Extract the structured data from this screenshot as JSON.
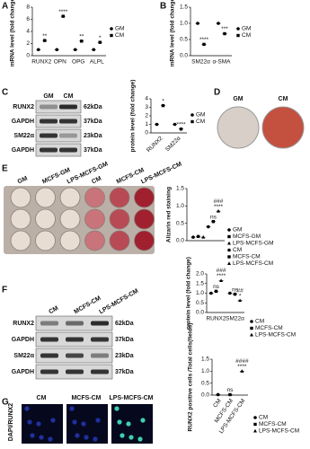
{
  "panel_labels": [
    "A",
    "B",
    "C",
    "D",
    "E",
    "F",
    "G"
  ],
  "blot_c": {
    "columns": [
      "GM",
      "CM"
    ],
    "rows": [
      {
        "protein": "RUNX2",
        "size": "62kDa"
      },
      {
        "protein": "GAPDH",
        "size": "37kDa"
      },
      {
        "protein": "SM22α",
        "size": "23kDa"
      },
      {
        "protein": "GAPDH",
        "size": "37kDa"
      }
    ]
  },
  "dishes_d": {
    "labels": [
      "GM",
      "CM"
    ]
  },
  "plate_e": {
    "labels": [
      "GM",
      "MCFS-GM",
      "LPS-MCFS-GM",
      "CM",
      "MCFS-CM",
      "LPS-MCFS-CM"
    ]
  },
  "blot_f": {
    "columns": [
      "CM",
      "MCFS-CM",
      "LPS-MCFS-CM"
    ],
    "rows": [
      {
        "protein": "RUNX2",
        "size": "62kDa"
      },
      {
        "protein": "GAPDH",
        "size": "37kDa"
      },
      {
        "protein": "SM22α",
        "size": "23kDa"
      },
      {
        "protein": "GAPDH",
        "size": "37kDa"
      }
    ]
  },
  "images_g": {
    "stain": "DAPI/RUNX2",
    "labels": [
      "CM",
      "MCFS-CM",
      "LPS-MCFS-CM"
    ]
  },
  "chart_data": [
    {
      "type": "dot",
      "ylabel": "mRNA level (fold change)",
      "categories": [
        "RUNX2",
        "OPN",
        "OPG",
        "ALPL"
      ],
      "ylim": [
        0,
        8
      ],
      "yticks": [
        0,
        2,
        4,
        6,
        8
      ],
      "series": [
        {
          "name": "GM",
          "color": "#000000",
          "values": [
            1,
            1,
            1,
            1
          ]
        },
        {
          "name": "CM",
          "color": "#000000",
          "values": [
            2.5,
            6.5,
            2.4,
            2.2
          ],
          "annotations": [
            [
              "**"
            ],
            [
              "****"
            ],
            [
              "**"
            ],
            [
              "*"
            ]
          ]
        }
      ]
    },
    {
      "type": "dot",
      "ylabel": "mRNA level (fold change)",
      "categories": [
        "SM22α",
        "α-SMA"
      ],
      "ylim": [
        0,
        1.5
      ],
      "yticks": [
        {
          "value": 0,
          "label": "0.0"
        },
        {
          "value": 0.5,
          "label": "0.5"
        },
        {
          "value": 1,
          "label": "1.0"
        },
        {
          "value": 1.5,
          "label": "1.5"
        }
      ],
      "series": [
        {
          "name": "GM",
          "color": "#000000",
          "values": [
            1,
            1
          ]
        },
        {
          "name": "CM",
          "color": "#000000",
          "values": [
            0.35,
            0.68
          ],
          "annotations": [
            [
              "****"
            ],
            [
              "***"
            ]
          ]
        }
      ]
    },
    {
      "type": "dot",
      "ylabel": "protein level (fold change)",
      "categories": [
        "RUNX2",
        "SM22α"
      ],
      "ylim": [
        0,
        4
      ],
      "yticks": [
        0,
        1,
        2,
        3,
        4
      ],
      "series": [
        {
          "name": "GM",
          "color": "#000000",
          "values": [
            1,
            1
          ]
        },
        {
          "name": "CM",
          "color": "#000000",
          "values": [
            3.2,
            0.45
          ],
          "annotations": [
            [
              "*"
            ],
            [
              "****"
            ]
          ]
        }
      ]
    },
    {
      "type": "dot",
      "ylabel": "Alizarin red staining",
      "categories": [
        null
      ],
      "ylim": [
        0,
        1.5
      ],
      "yticks": [
        {
          "value": 0,
          "label": "0.0"
        },
        {
          "value": 0.5,
          "label": "0.5"
        },
        {
          "value": 1,
          "label": "1.0"
        },
        {
          "value": 1.5,
          "label": "1.5"
        }
      ],
      "series": [
        {
          "name": "GM",
          "color": "#000000",
          "values": [
            0.1
          ]
        },
        {
          "name": "MCFS-GM",
          "color": "#000000",
          "values": [
            0.12
          ]
        },
        {
          "name": "LPS-MCFS-GM",
          "color": "#000000",
          "values": [
            0.1
          ]
        },
        {
          "name": "CM",
          "color": "#000000",
          "values": [
            0.4
          ]
        },
        {
          "name": "MCFS-CM",
          "color": "#000000",
          "values": [
            0.55
          ],
          "annotations": [
            [
              "ns"
            ]
          ]
        },
        {
          "name": "LPS-MCFS-CM",
          "color": "#000000",
          "values": [
            0.85
          ],
          "annotations": [
            [
              "###",
              "****"
            ]
          ]
        }
      ]
    },
    {
      "type": "dot",
      "ylabel": "protein level (fold change)",
      "categories": [
        "RUNX2",
        "SM22α"
      ],
      "ylim": [
        0,
        2
      ],
      "yticks": [
        {
          "value": 0,
          "label": "0.0"
        },
        {
          "value": 0.5,
          "label": "0.5"
        },
        {
          "value": 1,
          "label": "1.0"
        },
        {
          "value": 1.5,
          "label": "1.5"
        },
        {
          "value": 2,
          "label": "2.0"
        }
      ],
      "series": [
        {
          "name": "CM",
          "color": "#000000",
          "values": [
            1,
            1
          ]
        },
        {
          "name": "MCFS-CM",
          "color": "#000000",
          "values": [
            1.1,
            0.95
          ],
          "annotations": [
            [
              "ns"
            ],
            [
              "ns"
            ]
          ]
        },
        {
          "name": "LPS-MCFS-CM",
          "color": "#000000",
          "values": [
            1.65,
            0.62
          ],
          "annotations": [
            [
              "###",
              "****"
            ],
            [
              "##",
              "*"
            ]
          ]
        }
      ]
    },
    {
      "type": "dot",
      "ylabel": "RUNX2 positive cells /Total cells(fields)",
      "categories": [
        "CM",
        "MCFS-CM",
        "LPS-MCFS-CM"
      ],
      "ylim": [
        0,
        1.5
      ],
      "yticks": [
        {
          "value": 0,
          "label": "0.0"
        },
        {
          "value": 0.5,
          "label": "0.5"
        },
        {
          "value": 1,
          "label": "1.0"
        },
        {
          "value": 1.5,
          "label": "1.5"
        }
      ],
      "series": [
        {
          "name": "CM",
          "color": "#000000",
          "values": [
            0.02,
            null,
            null
          ]
        },
        {
          "name": "MCFS-CM",
          "color": "#000000",
          "values": [
            null,
            0.02,
            null
          ],
          "annotations": [
            null,
            [
              "ns"
            ],
            null
          ]
        },
        {
          "name": "LPS-MCFS-CM",
          "color": "#000000",
          "values": [
            null,
            null,
            1.0
          ],
          "annotations": [
            null,
            null,
            [
              "####",
              "****"
            ]
          ]
        }
      ]
    }
  ]
}
